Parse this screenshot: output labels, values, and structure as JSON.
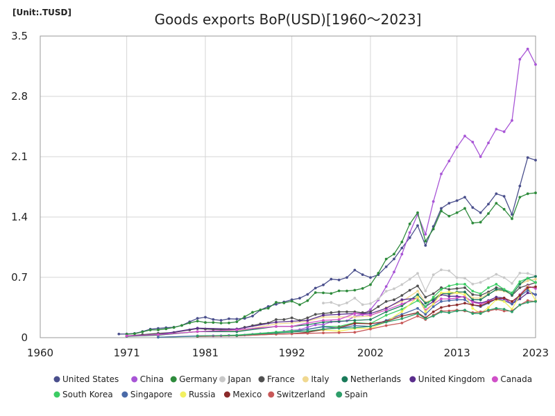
{
  "chart_data": {
    "type": "line",
    "title": "Goods exports BoP(USD)[1960～2023]",
    "unit_label": "[Unit:.TUSD]",
    "xlim": [
      1960,
      2023
    ],
    "ylim": [
      0,
      3.5
    ],
    "x_ticks": [
      {
        "value": 1960,
        "label": "1960"
      },
      {
        "value": 1971,
        "label": "1971"
      },
      {
        "value": 1981,
        "label": "1981"
      },
      {
        "value": 1992,
        "label": "1992"
      },
      {
        "value": 2002,
        "label": "2002"
      },
      {
        "value": 2013,
        "label": "2013"
      },
      {
        "value": 2023,
        "label": "2023"
      }
    ],
    "y_ticks": [
      {
        "value": 0,
        "label": "0"
      },
      {
        "value": 0.7,
        "label": "0.7"
      },
      {
        "value": 1.4,
        "label": "1.4"
      },
      {
        "value": 2.1,
        "label": "2.1"
      },
      {
        "value": 2.8,
        "label": "2.8"
      },
      {
        "value": 3.5,
        "label": "3.5"
      }
    ],
    "grid": true,
    "legend_position": "bottom",
    "series": [
      {
        "name": "United States",
        "color": "#4a4f8c",
        "x": [
          1970,
          1971,
          1972,
          1973,
          1974,
          1975,
          1976,
          1977,
          1978,
          1979,
          1980,
          1981,
          1982,
          1983,
          1984,
          1985,
          1986,
          1987,
          1988,
          1989,
          1990,
          1991,
          1992,
          1993,
          1994,
          1995,
          1996,
          1997,
          1998,
          1999,
          2000,
          2001,
          2002,
          2003,
          2004,
          2005,
          2006,
          2007,
          2008,
          2009,
          2010,
          2011,
          2012,
          2013,
          2014,
          2015,
          2016,
          2017,
          2018,
          2019,
          2020,
          2021,
          2022,
          2023
        ],
        "y": [
          0.042,
          0.043,
          0.049,
          0.071,
          0.098,
          0.107,
          0.115,
          0.121,
          0.142,
          0.184,
          0.224,
          0.237,
          0.211,
          0.201,
          0.219,
          0.216,
          0.223,
          0.25,
          0.32,
          0.362,
          0.387,
          0.414,
          0.44,
          0.458,
          0.502,
          0.575,
          0.612,
          0.679,
          0.67,
          0.698,
          0.784,
          0.731,
          0.698,
          0.73,
          0.823,
          0.913,
          1.04,
          1.16,
          1.3,
          1.07,
          1.29,
          1.5,
          1.56,
          1.59,
          1.63,
          1.51,
          1.45,
          1.55,
          1.67,
          1.64,
          1.43,
          1.76,
          2.09,
          2.06
        ]
      },
      {
        "name": "China",
        "color": "#a855d6",
        "x": [
          1982,
          1983,
          1984,
          1985,
          1986,
          1987,
          1988,
          1989,
          1990,
          1991,
          1992,
          1993,
          1994,
          1995,
          1996,
          1997,
          1998,
          1999,
          2000,
          2001,
          2002,
          2003,
          2004,
          2005,
          2006,
          2007,
          2008,
          2009,
          2010,
          2011,
          2012,
          2013,
          2014,
          2015,
          2016,
          2017,
          2018,
          2019,
          2020,
          2021,
          2022,
          2023
        ],
        "y": [
          0.021,
          0.022,
          0.026,
          0.026,
          0.03,
          0.039,
          0.046,
          0.051,
          0.062,
          0.072,
          0.085,
          0.092,
          0.121,
          0.149,
          0.151,
          0.183,
          0.184,
          0.195,
          0.249,
          0.266,
          0.326,
          0.438,
          0.593,
          0.762,
          0.969,
          1.22,
          1.43,
          1.2,
          1.58,
          1.9,
          2.05,
          2.21,
          2.34,
          2.27,
          2.1,
          2.26,
          2.42,
          2.39,
          2.52,
          3.23,
          3.35,
          3.17
        ]
      },
      {
        "name": "Germany",
        "color": "#2e8b3c",
        "x": [
          1971,
          1972,
          1973,
          1974,
          1975,
          1976,
          1977,
          1978,
          1979,
          1980,
          1981,
          1982,
          1983,
          1984,
          1985,
          1986,
          1987,
          1988,
          1989,
          1990,
          1991,
          1992,
          1993,
          1994,
          1995,
          1996,
          1997,
          1998,
          1999,
          2000,
          2001,
          2002,
          2003,
          2004,
          2005,
          2006,
          2007,
          2008,
          2009,
          2010,
          2011,
          2012,
          2013,
          2014,
          2015,
          2016,
          2017,
          2018,
          2019,
          2020,
          2021,
          2022,
          2023
        ],
        "y": [
          0.04,
          0.046,
          0.067,
          0.089,
          0.09,
          0.102,
          0.118,
          0.142,
          0.171,
          0.192,
          0.176,
          0.176,
          0.169,
          0.171,
          0.184,
          0.243,
          0.294,
          0.323,
          0.341,
          0.41,
          0.403,
          0.423,
          0.382,
          0.429,
          0.523,
          0.52,
          0.513,
          0.543,
          0.542,
          0.551,
          0.571,
          0.615,
          0.748,
          0.912,
          0.97,
          1.11,
          1.32,
          1.45,
          1.12,
          1.26,
          1.47,
          1.41,
          1.45,
          1.5,
          1.33,
          1.34,
          1.44,
          1.56,
          1.49,
          1.38,
          1.63,
          1.67,
          1.68
        ]
      },
      {
        "name": "Japan",
        "color": "#c8c8c8",
        "x": [
          1996,
          1997,
          1998,
          1999,
          2000,
          2001,
          2002,
          2003,
          2004,
          2005,
          2006,
          2007,
          2008,
          2009,
          2010,
          2011,
          2012,
          2013,
          2014,
          2015,
          2016,
          2017,
          2018,
          2019,
          2020,
          2021,
          2022,
          2023
        ],
        "y": [
          0.401,
          0.409,
          0.374,
          0.403,
          0.459,
          0.383,
          0.395,
          0.449,
          0.539,
          0.567,
          0.616,
          0.678,
          0.746,
          0.542,
          0.73,
          0.787,
          0.776,
          0.697,
          0.69,
          0.622,
          0.641,
          0.688,
          0.735,
          0.697,
          0.63,
          0.749,
          0.746,
          0.717
        ]
      },
      {
        "name": "France",
        "color": "#505050",
        "x": [
          1971,
          1973,
          1975,
          1977,
          1979,
          1980,
          1981,
          1982,
          1983,
          1984,
          1985,
          1986,
          1987,
          1988,
          1989,
          1990,
          1991,
          1992,
          1993,
          1994,
          1995,
          1996,
          1997,
          1998,
          1999,
          2000,
          2001,
          2002,
          2003,
          2004,
          2005,
          2006,
          2007,
          2008,
          2009,
          2010,
          2011,
          2012,
          2013,
          2014,
          2015,
          2016,
          2017,
          2018,
          2019,
          2020,
          2021,
          2022,
          2023
        ],
        "y": [
          0.02,
          0.035,
          0.05,
          0.06,
          0.09,
          0.105,
          0.1,
          0.095,
          0.093,
          0.095,
          0.1,
          0.12,
          0.14,
          0.16,
          0.17,
          0.21,
          0.21,
          0.23,
          0.2,
          0.23,
          0.27,
          0.28,
          0.29,
          0.3,
          0.3,
          0.3,
          0.29,
          0.3,
          0.36,
          0.42,
          0.44,
          0.49,
          0.55,
          0.6,
          0.47,
          0.51,
          0.58,
          0.56,
          0.57,
          0.58,
          0.5,
          0.49,
          0.53,
          0.58,
          0.56,
          0.49,
          0.58,
          0.61,
          0.64
        ]
      },
      {
        "name": "Italy",
        "color": "#f0d890",
        "x": [
          1971,
          1975,
          1980,
          1985,
          1990,
          1992,
          1994,
          1996,
          1998,
          2000,
          2002,
          2004,
          2006,
          2008,
          2009,
          2010,
          2011,
          2012,
          2013,
          2014,
          2015,
          2016,
          2017,
          2018,
          2019,
          2020,
          2021,
          2022,
          2023
        ],
        "y": [
          0.015,
          0.03,
          0.07,
          0.075,
          0.16,
          0.17,
          0.19,
          0.24,
          0.24,
          0.24,
          0.25,
          0.35,
          0.42,
          0.54,
          0.41,
          0.45,
          0.52,
          0.5,
          0.52,
          0.53,
          0.46,
          0.46,
          0.51,
          0.55,
          0.54,
          0.5,
          0.62,
          0.66,
          0.68
        ]
      },
      {
        "name": "Netherlands",
        "color": "#1a7a5a",
        "x": [
          1971,
          1975,
          1980,
          1985,
          1990,
          1992,
          1994,
          1996,
          1998,
          2000,
          2002,
          2004,
          2006,
          2008,
          2009,
          2010,
          2011,
          2012,
          2013,
          2014,
          2015,
          2016,
          2017,
          2018,
          2019,
          2020,
          2021,
          2022,
          2023
        ],
        "y": [
          0.015,
          0.03,
          0.07,
          0.07,
          0.13,
          0.13,
          0.15,
          0.18,
          0.19,
          0.2,
          0.21,
          0.3,
          0.37,
          0.5,
          0.4,
          0.44,
          0.51,
          0.51,
          0.53,
          0.53,
          0.44,
          0.44,
          0.5,
          0.56,
          0.55,
          0.5,
          0.62,
          0.69,
          0.71
        ]
      },
      {
        "name": "United Kingdom",
        "color": "#5a2d8c",
        "x": [
          1971,
          1975,
          1980,
          1985,
          1990,
          1992,
          1994,
          1996,
          1998,
          2000,
          2002,
          2004,
          2006,
          2008,
          2009,
          2010,
          2011,
          2012,
          2013,
          2014,
          2015,
          2016,
          2017,
          2018,
          2019,
          2020,
          2021,
          2022,
          2023
        ],
        "y": [
          0.02,
          0.035,
          0.11,
          0.1,
          0.18,
          0.19,
          0.2,
          0.26,
          0.27,
          0.28,
          0.28,
          0.34,
          0.44,
          0.46,
          0.36,
          0.42,
          0.5,
          0.48,
          0.48,
          0.47,
          0.42,
          0.4,
          0.43,
          0.47,
          0.46,
          0.39,
          0.45,
          0.52,
          0.5
        ]
      },
      {
        "name": "Canada",
        "color": "#d050c8",
        "x": [
          1971,
          1975,
          1980,
          1985,
          1990,
          1992,
          1994,
          1996,
          1998,
          2000,
          2002,
          2004,
          2006,
          2008,
          2009,
          2010,
          2011,
          2012,
          2013,
          2014,
          2015,
          2016,
          2017,
          2018,
          2019,
          2020,
          2021,
          2022,
          2023
        ],
        "y": [
          0.02,
          0.035,
          0.07,
          0.09,
          0.13,
          0.13,
          0.17,
          0.2,
          0.21,
          0.28,
          0.26,
          0.32,
          0.39,
          0.46,
          0.32,
          0.39,
          0.45,
          0.45,
          0.46,
          0.48,
          0.41,
          0.39,
          0.42,
          0.45,
          0.45,
          0.39,
          0.5,
          0.6,
          0.57
        ]
      },
      {
        "name": "South Korea",
        "color": "#3ccc64",
        "x": [
          1975,
          1980,
          1985,
          1990,
          1992,
          1994,
          1996,
          1998,
          2000,
          2002,
          2004,
          2006,
          2008,
          2009,
          2010,
          2011,
          2012,
          2013,
          2014,
          2015,
          2016,
          2017,
          2018,
          2019,
          2020,
          2021,
          2022,
          2023
        ],
        "y": [
          0.005,
          0.017,
          0.03,
          0.065,
          0.077,
          0.094,
          0.13,
          0.13,
          0.175,
          0.163,
          0.26,
          0.33,
          0.43,
          0.36,
          0.47,
          0.56,
          0.6,
          0.62,
          0.62,
          0.54,
          0.51,
          0.58,
          0.62,
          0.56,
          0.52,
          0.65,
          0.69,
          0.64
        ]
      },
      {
        "name": "Singapore",
        "color": "#4a6aa8",
        "x": [
          1975,
          1980,
          1985,
          1990,
          1992,
          1994,
          1996,
          1998,
          2000,
          2002,
          2004,
          2006,
          2008,
          2009,
          2010,
          2011,
          2012,
          2013,
          2014,
          2015,
          2016,
          2017,
          2018,
          2019,
          2020,
          2021,
          2022,
          2023
        ],
        "y": [
          0.005,
          0.02,
          0.023,
          0.053,
          0.064,
          0.097,
          0.126,
          0.11,
          0.14,
          0.13,
          0.2,
          0.27,
          0.34,
          0.27,
          0.36,
          0.42,
          0.43,
          0.44,
          0.44,
          0.38,
          0.36,
          0.4,
          0.45,
          0.43,
          0.39,
          0.48,
          0.55,
          0.5
        ]
      },
      {
        "name": "Russia",
        "color": "#f2f060",
        "x": [
          1994,
          1996,
          1998,
          2000,
          2002,
          2004,
          2006,
          2008,
          2009,
          2010,
          2011,
          2012,
          2013,
          2014,
          2015,
          2016,
          2017,
          2018,
          2019,
          2020,
          2021,
          2022,
          2023
        ],
        "y": [
          0.067,
          0.09,
          0.075,
          0.105,
          0.107,
          0.183,
          0.304,
          0.47,
          0.3,
          0.39,
          0.52,
          0.53,
          0.52,
          0.5,
          0.34,
          0.28,
          0.35,
          0.44,
          0.42,
          0.33,
          0.49,
          0.59,
          0.43
        ]
      },
      {
        "name": "Mexico",
        "color": "#8b2a2a",
        "x": [
          1980,
          1985,
          1990,
          1992,
          1994,
          1996,
          1998,
          2000,
          2002,
          2004,
          2006,
          2008,
          2009,
          2010,
          2011,
          2012,
          2013,
          2014,
          2015,
          2016,
          2017,
          2018,
          2019,
          2020,
          2021,
          2022,
          2023
        ],
        "y": [
          0.015,
          0.022,
          0.041,
          0.046,
          0.061,
          0.096,
          0.117,
          0.166,
          0.161,
          0.188,
          0.25,
          0.29,
          0.23,
          0.3,
          0.35,
          0.37,
          0.38,
          0.4,
          0.38,
          0.37,
          0.41,
          0.45,
          0.46,
          0.42,
          0.49,
          0.58,
          0.59
        ]
      },
      {
        "name": "Switzerland",
        "color": "#c85858",
        "x": [
          1980,
          1985,
          1990,
          1992,
          1994,
          1996,
          1998,
          2000,
          2002,
          2004,
          2006,
          2008,
          2009,
          2010,
          2011,
          2012,
          2013,
          2014,
          2015,
          2016,
          2017,
          2018,
          2019,
          2020,
          2021,
          2022,
          2023
        ],
        "y": [
          0.02,
          0.022,
          0.04,
          0.045,
          0.05,
          0.055,
          0.058,
          0.062,
          0.1,
          0.14,
          0.17,
          0.25,
          0.21,
          0.26,
          0.31,
          0.31,
          0.32,
          0.31,
          0.29,
          0.3,
          0.31,
          0.33,
          0.31,
          0.31,
          0.38,
          0.43,
          0.42
        ]
      },
      {
        "name": "Spain",
        "color": "#2e9e6a",
        "x": [
          1980,
          1985,
          1990,
          1992,
          1994,
          1996,
          1998,
          2000,
          2002,
          2004,
          2006,
          2008,
          2009,
          2010,
          2011,
          2012,
          2013,
          2014,
          2015,
          2016,
          2017,
          2018,
          2019,
          2020,
          2021,
          2022,
          2023
        ],
        "y": [
          0.02,
          0.025,
          0.055,
          0.065,
          0.075,
          0.1,
          0.11,
          0.115,
          0.13,
          0.18,
          0.22,
          0.28,
          0.22,
          0.25,
          0.3,
          0.29,
          0.31,
          0.32,
          0.28,
          0.28,
          0.32,
          0.34,
          0.33,
          0.3,
          0.38,
          0.41,
          0.42
        ]
      }
    ]
  }
}
